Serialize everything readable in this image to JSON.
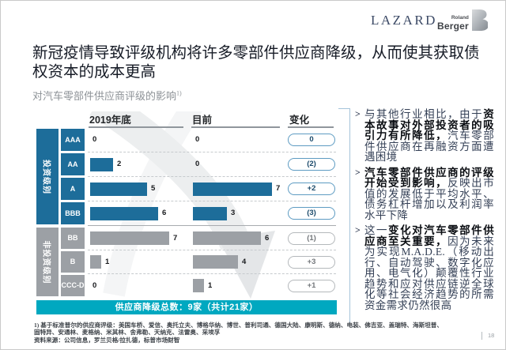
{
  "header": {
    "lazard": "LAZARD",
    "roland": "Roland",
    "berger": "Berger",
    "title": "新冠疫情导致评级机构将许多零部件供应商降级，从而使其获取债权资本的成本更高",
    "subtitle": "对汽车零部件供应商评级的影响",
    "subtitle_sup": "1)"
  },
  "chart_data": {
    "type": "bar",
    "title": "对汽车零部件供应商评级的影响 1)",
    "columns": [
      "2019年底",
      "目前",
      "变化"
    ],
    "unit": "家",
    "groups": [
      {
        "label": "投资级别",
        "color": "#1d6d9a",
        "pill_border": "#5d9bc2",
        "pill_text": "#1b4a6b",
        "rows": [
          {
            "rating": "AAA",
            "end2019": 0,
            "current": 0,
            "change": "0"
          },
          {
            "rating": "AA",
            "end2019": 2,
            "current": 0,
            "change": "(2)"
          },
          {
            "rating": "A",
            "end2019": 5,
            "current": 7,
            "change": "+2"
          },
          {
            "rating": "BBB",
            "end2019": 6,
            "current": 3,
            "change": "(3)"
          }
        ]
      },
      {
        "label": "非投资级别",
        "color": "#9ca0a5",
        "pill_border": "#b4b8bb",
        "pill_text": "#73777b",
        "rows": [
          {
            "rating": "BB",
            "end2019": 7,
            "current": 6,
            "change": "(1)"
          },
          {
            "rating": "B",
            "end2019": 1,
            "current": 4,
            "change": "+3"
          },
          {
            "rating": "CCC-D",
            "end2019": 0,
            "current": 1,
            "change": "+1"
          }
        ]
      }
    ],
    "banner": "供应商降级总数：9家（共计21家）",
    "banner_color": "#00a8c0",
    "legend_position": "none",
    "grid": "dashed-row-separators"
  },
  "bullet_marker": ">",
  "bullets": [
    [
      {
        "t": "与其他行业相比，由于",
        "b": false
      },
      {
        "t": "资本故事对外部投资者的吸引力有所降低，",
        "b": true
      },
      {
        "t": "汽车零部件供应商在再融资方面遭遇困境",
        "b": false
      }
    ],
    [
      {
        "t": "汽车零部件供应商的评级开始受到影响，",
        "b": true
      },
      {
        "t": "反映出市值的发展低于平均水平、债务杠杆增加以及利润率水平下降",
        "b": false
      }
    ],
    [
      {
        "t": "这一",
        "b": false
      },
      {
        "t": "变化对汽车零部件供应商至关重要，",
        "b": true
      },
      {
        "t": "因为未来为实现M.A.D.E.（移动出行、自动驾驶、数字化应用、电气化）颠覆性行业趋势和应对供应链逆全球化等社会经济趋势的所需资金需求仍然很高",
        "b": false
      }
    ]
  ],
  "footnote": {
    "line1": "1) 基于标准普尔的供应商评级：美国车桥、爱信、奥托立夫、博格华纳、博世、普利司通、德国大陆、康明斯、德纳、电装、佛吉亚、盖瑞特、海斯坦普、",
    "line2": "固特异、安通林、麦格纳、米其林、舍弗勒、天纳克、法雷奥、采埃孚",
    "line3": "资料来源：公司信息，罗兰贝格/拉扎德，标普市场财智"
  },
  "page_number": "18"
}
